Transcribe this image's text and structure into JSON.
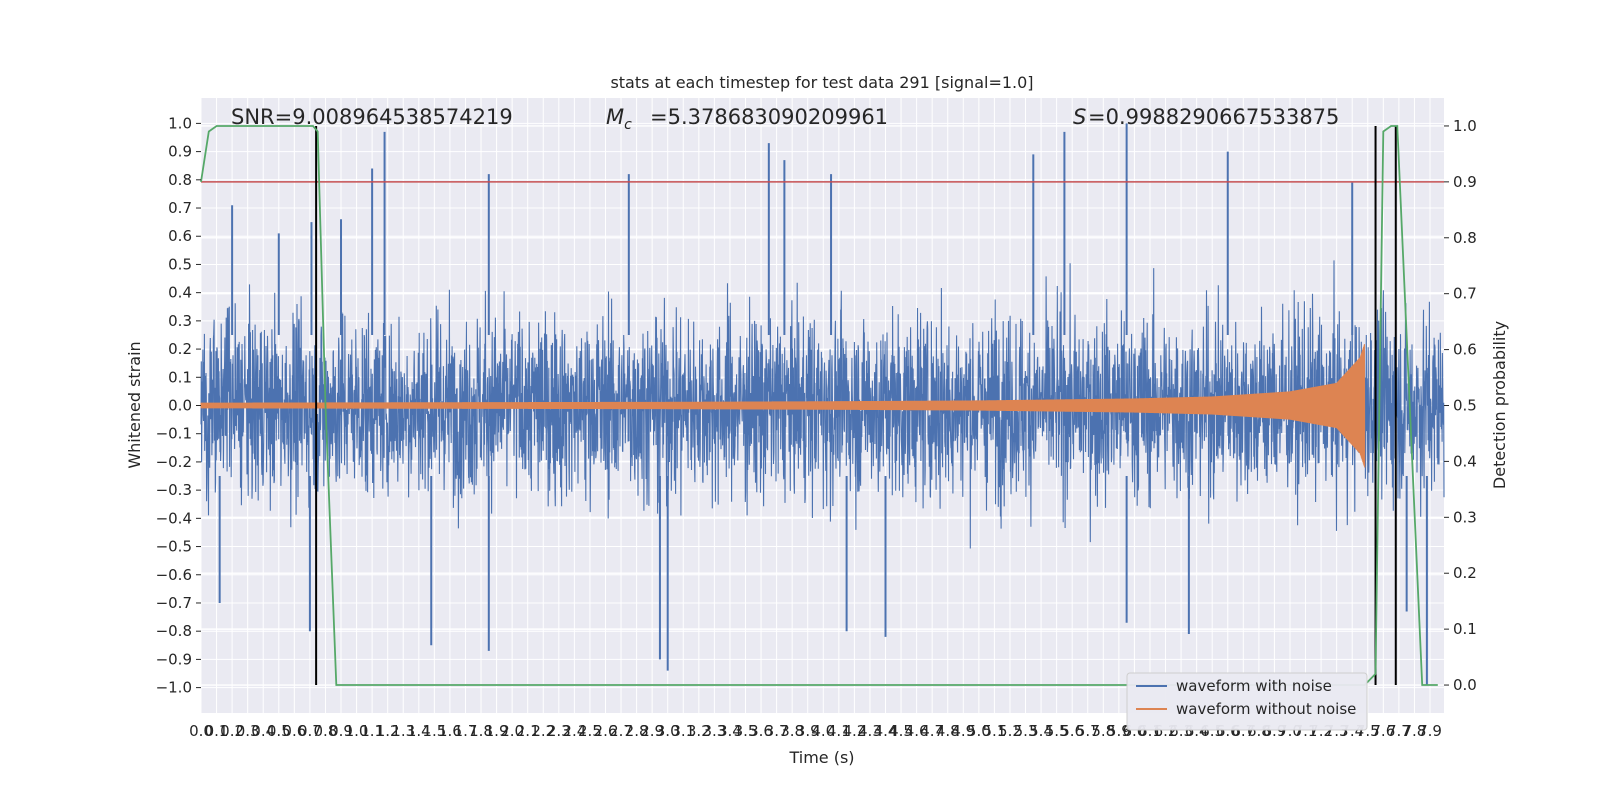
{
  "chart_data": {
    "type": "line",
    "title": "stats at each timestep for test data 291 [signal=1.0]",
    "xlabel": "Time (s)",
    "ylabel_left": "Whitened strain",
    "ylabel_right": "Detection probability",
    "xlim": [
      0.0,
      7.99
    ],
    "ylim_left": [
      -1.09,
      1.09
    ],
    "ylim_right": [
      -0.05,
      1.05
    ],
    "x_ticks": [
      "0.0",
      "0.1",
      "0.2",
      "0.3",
      "0.4",
      "0.5",
      "0.6",
      "0.7",
      "0.8",
      "0.9",
      "1.0",
      "1.1",
      "1.2",
      "1.3",
      "1.4",
      "1.5",
      "1.6",
      "1.7",
      "1.8",
      "1.9",
      "2.0",
      "2.1",
      "2.2",
      "2.3",
      "2.4",
      "2.5",
      "2.6",
      "2.7",
      "2.8",
      "2.9",
      "3.0",
      "3.1",
      "3.2",
      "3.3",
      "3.4",
      "3.5",
      "3.6",
      "3.7",
      "3.8",
      "3.9",
      "4.0",
      "4.1",
      "4.2",
      "4.3",
      "4.4",
      "4.5",
      "4.6",
      "4.7",
      "4.8",
      "4.9",
      "5.0",
      "5.1",
      "5.2",
      "5.3",
      "5.4",
      "5.5",
      "5.6",
      "5.7",
      "5.8",
      "5.9",
      "6.0",
      "6.1",
      "6.2",
      "6.3",
      "6.4",
      "6.5",
      "6.6",
      "6.7",
      "6.8",
      "6.9",
      "7.0",
      "7.1",
      "7.2",
      "7.3",
      "7.4",
      "7.5",
      "7.6",
      "7.7",
      "7.8",
      "7.9"
    ],
    "y_ticks_left": [
      "−1.0",
      "−0.9",
      "−0.8",
      "−0.7",
      "−0.6",
      "−0.5",
      "−0.4",
      "−0.3",
      "−0.2",
      "−0.1",
      "0.0",
      "0.1",
      "0.2",
      "0.3",
      "0.4",
      "0.5",
      "0.6",
      "0.7",
      "0.8",
      "0.9",
      "1.0"
    ],
    "y_ticks_right": [
      "0.0",
      "0.1",
      "0.2",
      "0.3",
      "0.4",
      "0.5",
      "0.6",
      "0.7",
      "0.8",
      "0.9",
      "1.0"
    ],
    "annotations": {
      "snr": "SNR=9.008964538574219",
      "mc": "=5.378683090209961",
      "s": "=0.9988290667533875"
    },
    "threshold_right": 0.9,
    "vertical_lines_x": [
      0.74,
      7.55,
      7.68
    ],
    "series": [
      {
        "name": "waveform with noise",
        "color": "#4c72b0",
        "envelope": "noise, amplitude ~0.35 typical, peaks to ±1.0",
        "peaks_top": [
          [
            0.2,
            0.71
          ],
          [
            0.5,
            0.61
          ],
          [
            0.71,
            0.65
          ],
          [
            0.9,
            0.66
          ],
          [
            1.1,
            0.84
          ],
          [
            1.18,
            0.97
          ],
          [
            1.85,
            0.82
          ],
          [
            2.75,
            0.82
          ],
          [
            3.65,
            0.93
          ],
          [
            3.75,
            0.87
          ],
          [
            4.05,
            0.82
          ],
          [
            5.35,
            0.89
          ],
          [
            5.55,
            0.97
          ],
          [
            5.95,
            1.0
          ],
          [
            6.6,
            0.9
          ],
          [
            7.4,
            0.79
          ]
        ],
        "peaks_bottom": [
          [
            0.12,
            -0.7
          ],
          [
            0.7,
            -0.8
          ],
          [
            1.48,
            -0.85
          ],
          [
            1.85,
            -0.87
          ],
          [
            2.95,
            -0.9
          ],
          [
            3.0,
            -0.94
          ],
          [
            4.15,
            -0.8
          ],
          [
            4.4,
            -0.82
          ],
          [
            5.95,
            -0.77
          ],
          [
            6.35,
            -0.81
          ],
          [
            7.75,
            -0.73
          ],
          [
            7.88,
            -0.99
          ]
        ]
      },
      {
        "name": "waveform without noise",
        "color": "#dd8452",
        "x": [
          0.0,
          1.0,
          2.0,
          3.0,
          4.0,
          5.0,
          6.0,
          6.5,
          7.0,
          7.3,
          7.45,
          7.48
        ],
        "amplitude": [
          0.01,
          0.011,
          0.012,
          0.013,
          0.015,
          0.018,
          0.025,
          0.032,
          0.05,
          0.08,
          0.17,
          0.22
        ]
      },
      {
        "name": "detection probability",
        "color": "#55a868",
        "axis": "right",
        "x": [
          0.0,
          0.05,
          0.1,
          0.72,
          0.75,
          0.8,
          0.87,
          7.48,
          7.55,
          7.6,
          7.65,
          7.69,
          7.85,
          7.95
        ],
        "values": [
          0.9,
          0.99,
          1.0,
          1.0,
          0.99,
          0.5,
          0.0,
          0.0,
          0.02,
          0.99,
          1.0,
          1.0,
          0.0,
          0.0
        ]
      }
    ],
    "legend": {
      "position": "lower right",
      "entries": [
        "waveform with noise",
        "waveform without noise"
      ]
    }
  }
}
